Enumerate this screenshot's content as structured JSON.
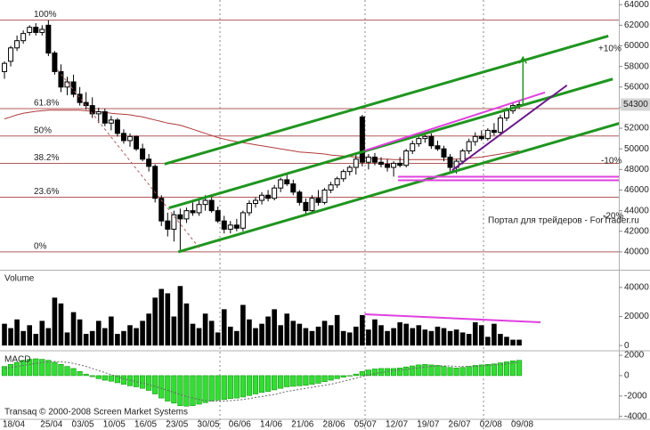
{
  "chart_data": [
    {
      "type": "candlestick",
      "categories": [
        "18/04",
        null,
        null,
        null,
        null,
        null,
        "25/04",
        null,
        null,
        null,
        null,
        "03/05",
        null,
        null,
        null,
        null,
        "10/05",
        null,
        null,
        null,
        null,
        "16/05",
        null,
        null,
        null,
        null,
        "23/05",
        null,
        null,
        null,
        null,
        "30/05",
        null,
        null,
        null,
        null,
        "06/06",
        null,
        null,
        null,
        null,
        "14/06",
        null,
        null,
        null,
        null,
        "21/06",
        null,
        null,
        null,
        null,
        "28/06",
        null,
        null,
        null,
        null,
        "05/07",
        null,
        null,
        null,
        null,
        "12/07",
        null,
        null,
        null,
        null,
        "19/07",
        null,
        null,
        null,
        null,
        "26/07",
        null,
        null,
        null,
        null,
        "02/08",
        null,
        null,
        null,
        null,
        "09/08",
        null
      ],
      "open": [
        57500,
        58500,
        59800,
        60500,
        61300,
        61800,
        61300,
        62000,
        59300,
        57500,
        56000,
        56500,
        55300,
        54500,
        54200,
        53400,
        53600,
        52500,
        52800,
        51500,
        50800,
        51200,
        50000,
        49000,
        48300,
        45200,
        43000,
        42200,
        43600,
        43200,
        44000,
        43800,
        44600,
        45000,
        44000,
        43000,
        42200,
        42600,
        42300,
        43800,
        44700,
        45000,
        45500,
        45200,
        46200,
        47000,
        46600,
        45800,
        44800,
        44000,
        45200,
        44800,
        46000,
        46500,
        47100,
        47800,
        48200,
        53100,
        48700,
        49200,
        48700,
        48500,
        48200,
        48600,
        48400,
        49800,
        50500,
        51000,
        51200,
        50300,
        50000,
        49200,
        48200,
        48800,
        49800,
        50700,
        51200,
        51000,
        51800,
        51600,
        53000,
        53700,
        54200
      ],
      "high": [
        58500,
        60000,
        61000,
        61500,
        62000,
        62200,
        62000,
        62500,
        59500,
        58200,
        57000,
        57200,
        56000,
        55500,
        55000,
        54000,
        53900,
        53200,
        53000,
        51900,
        51500,
        51300,
        50500,
        49500,
        48500,
        45500,
        43800,
        44000,
        44200,
        44300,
        44800,
        45000,
        45500,
        45300,
        44400,
        43500,
        43000,
        43200,
        44000,
        45000,
        45300,
        45800,
        46000,
        46500,
        47200,
        47600,
        47000,
        46000,
        45200,
        45500,
        46000,
        46200,
        46800,
        47300,
        48000,
        48400,
        49500,
        53300,
        49500,
        49600,
        49200,
        49000,
        48800,
        49200,
        50000,
        50800,
        51200,
        51500,
        51500,
        50800,
        50300,
        49500,
        49000,
        50000,
        51000,
        51600,
        51800,
        52000,
        52500,
        53300,
        54000,
        54500,
        54600
      ],
      "low": [
        56800,
        58000,
        59500,
        60200,
        61000,
        61000,
        61000,
        59000,
        57200,
        55500,
        55200,
        55000,
        54200,
        53800,
        53000,
        52500,
        52200,
        51800,
        51200,
        50500,
        50200,
        49800,
        48800,
        47800,
        44800,
        42500,
        41500,
        41000,
        40000,
        42800,
        43500,
        43500,
        44000,
        43800,
        42800,
        41800,
        41800,
        42000,
        42000,
        43500,
        44300,
        44600,
        44900,
        45000,
        45800,
        46400,
        45500,
        44500,
        43700,
        43800,
        44500,
        44600,
        45700,
        46200,
        46800,
        47400,
        47500,
        48300,
        48000,
        48400,
        48200,
        47800,
        47300,
        48200,
        48200,
        49500,
        50200,
        50600,
        50000,
        49800,
        48800,
        47800,
        47600,
        48500,
        49500,
        50300,
        50800,
        50800,
        51300,
        51400,
        52700,
        53400,
        53900
      ],
      "close": [
        58300,
        59800,
        60500,
        61200,
        61800,
        61300,
        61600,
        59300,
        57500,
        56000,
        56500,
        55300,
        54500,
        54200,
        53400,
        53600,
        52500,
        52800,
        51500,
        50800,
        51200,
        50000,
        49000,
        48300,
        45200,
        43000,
        42200,
        43600,
        43200,
        44000,
        43800,
        44600,
        45000,
        44000,
        43000,
        42200,
        42600,
        42300,
        43800,
        44700,
        45000,
        45500,
        45200,
        46200,
        47000,
        46600,
        45800,
        44800,
        44000,
        45200,
        44800,
        46000,
        46500,
        47100,
        47800,
        48200,
        49000,
        48700,
        49200,
        48700,
        48500,
        48200,
        48600,
        48400,
        49800,
        50500,
        51000,
        51200,
        50300,
        50000,
        49200,
        48200,
        48800,
        49800,
        50700,
        51200,
        51000,
        51800,
        51600,
        53000,
        53700,
        54200,
        54300
      ],
      "up_color": "#ffffff",
      "down_color": "#000000",
      "ylim": [
        38350,
        64450
      ],
      "yticks": [
        40000,
        42000,
        44000,
        46000,
        48000,
        50000,
        52000,
        54000,
        56000,
        58000,
        60000,
        62000,
        64000
      ],
      "moving_average": {
        "color": "#b03a3a",
        "values": [
          52900,
          53100,
          53300,
          53450,
          53550,
          53650,
          53700,
          53750,
          53750,
          53750,
          53750,
          53750,
          53750,
          53700,
          53650,
          53600,
          53550,
          53450,
          53400,
          53350,
          53300,
          53200,
          53100,
          52950,
          52800,
          52650,
          52500,
          52400,
          52300,
          52100,
          51900,
          51700,
          51500,
          51300,
          51100,
          50950,
          50800,
          50700,
          50600,
          50500,
          50400,
          50300,
          50200,
          50100,
          50000,
          49900,
          49800,
          49700,
          49650,
          49600,
          49550,
          49500,
          49400,
          49350,
          49300,
          49250,
          49200,
          49150,
          49100,
          49050,
          49000,
          49000,
          48950,
          48950,
          48950,
          48950,
          48950,
          48950,
          48950,
          48950,
          48950,
          49000,
          49000,
          49050,
          49100,
          49150,
          49200,
          49300,
          49400,
          49500,
          49600,
          49700,
          49800
        ]
      },
      "level_color": "#b05a5a",
      "levels": [
        {
          "label": "100%",
          "value": 62500
        },
        {
          "label": "61.8%",
          "value": 53905
        },
        {
          "label": "50%",
          "value": 51250
        },
        {
          "label": "38.2%",
          "value": 48595
        },
        {
          "label": "23.6%",
          "value": 45310
        },
        {
          "label": "0%",
          "value": 40000
        }
      ],
      "trendlines": [
        {
          "color": "#1f951f",
          "style": "bold",
          "x": [
            25.5,
            96.2
          ],
          "y": [
            48520,
            60960
          ]
        },
        {
          "color": "#1f951f",
          "style": "bold",
          "x": [
            26.2,
            96.9
          ],
          "y": [
            44260,
            56780
          ]
        },
        {
          "color": "#1f951f",
          "style": "bold",
          "x": [
            27.7,
            98.2
          ],
          "y": [
            40000,
            52520
          ]
        },
        {
          "color": "#e040e0",
          "style": "normal",
          "x": [
            57.4,
            86.1
          ],
          "y": [
            49830,
            55480
          ]
        },
        {
          "color": "#e040e0",
          "style": "normal",
          "x": [
            62.7,
            98.2
          ],
          "y": [
            47300,
            47300
          ]
        },
        {
          "color": "#e040e0",
          "style": "normal",
          "x": [
            62.7,
            98.2
          ],
          "y": [
            46950,
            46950
          ]
        },
        {
          "color": "#6a1a8a",
          "style": "normal",
          "x": [
            71.3,
            89.6
          ],
          "y": [
            47910,
            56170
          ]
        },
        {
          "color": "#b05a5a",
          "style": "dashed",
          "x": [
            8.5,
            31.2
          ],
          "y": [
            57650,
            40260
          ]
        }
      ],
      "arrow": {
        "color": "#1f951f",
        "x": 82.6,
        "y": [
          54200,
          58900
        ]
      },
      "annotations": [
        {
          "text": "+10%",
          "color": "#1f951f"
        },
        {
          "text": "-10%",
          "color": "#c04040"
        },
        {
          "text": "-20%",
          "color": "#c04040"
        }
      ],
      "watermark": "Портал для трейдеров - ForTrader.ru",
      "last_price": 54300
    },
    {
      "type": "bar",
      "title": "Volume",
      "color": "#000000",
      "values": [
        15000,
        12000,
        18000,
        10000,
        14000,
        8000,
        17000,
        12000,
        33000,
        29000,
        9000,
        23000,
        18000,
        8000,
        10000,
        17000,
        12000,
        20000,
        8000,
        10000,
        14000,
        12000,
        17000,
        22000,
        33000,
        39000,
        36000,
        20000,
        41000,
        29000,
        15000,
        12000,
        22000,
        17000,
        9000,
        25000,
        13000,
        10000,
        28000,
        18000,
        12000,
        15000,
        20000,
        25000,
        14000,
        22000,
        17000,
        15000,
        12000,
        10000,
        13000,
        17000,
        14000,
        21000,
        10000,
        9000,
        13000,
        21000,
        11000,
        18000,
        14000,
        10000,
        12000,
        16000,
        15000,
        12000,
        14000,
        11000,
        10000,
        13000,
        12000,
        10000,
        11000,
        9000,
        8000,
        16000,
        14000,
        6000,
        15000,
        8000,
        6000,
        4000,
        4000
      ],
      "ylim": [
        -3000,
        51000
      ],
      "yticks": [
        0,
        20000,
        40000
      ],
      "trendlines": [
        {
          "color": "#e040e0",
          "style": "normal",
          "x": [
            57.4,
            85.4
          ],
          "y": [
            21540,
            16000
          ]
        }
      ]
    },
    {
      "type": "bar",
      "title": "MACD",
      "color": "#33dd33",
      "edge_color": "#119911",
      "values": [
        900,
        1100,
        1300,
        1500,
        1600,
        1650,
        1600,
        1500,
        1300,
        1100,
        900,
        700,
        400,
        150,
        -100,
        -300,
        -450,
        -550,
        -700,
        -850,
        -1000,
        -1100,
        -1250,
        -1450,
        -1800,
        -2200,
        -2500,
        -2700,
        -2950,
        -3000,
        -2950,
        -2800,
        -2650,
        -2500,
        -2400,
        -2350,
        -2250,
        -2200,
        -2100,
        -1950,
        -1800,
        -1650,
        -1550,
        -1400,
        -1250,
        -1100,
        -1050,
        -1000,
        -950,
        -850,
        -750,
        -600,
        -450,
        -300,
        -150,
        0,
        150,
        400,
        550,
        650,
        700,
        700,
        700,
        750,
        850,
        950,
        1050,
        1100,
        1050,
        1000,
        900,
        800,
        750,
        800,
        900,
        1000,
        1050,
        1100,
        1150,
        1250,
        1350,
        1450,
        1500
      ],
      "signal": {
        "color": "#666666",
        "values": [
          700,
          800,
          900,
          1000,
          1100,
          1200,
          1300,
          1350,
          1400,
          1350,
          1300,
          1200,
          1050,
          900,
          700,
          500,
          300,
          100,
          -100,
          -300,
          -450,
          -600,
          -750,
          -900,
          -1050,
          -1250,
          -1450,
          -1650,
          -1850,
          -2050,
          -2200,
          -2350,
          -2450,
          -2500,
          -2500,
          -2500,
          -2450,
          -2400,
          -2350,
          -2250,
          -2150,
          -2050,
          -1950,
          -1850,
          -1700,
          -1550,
          -1450,
          -1350,
          -1250,
          -1150,
          -1050,
          -950,
          -850,
          -700,
          -550,
          -400,
          -250,
          -100,
          50,
          200,
          300,
          400,
          500,
          550,
          600,
          700,
          750,
          850,
          900,
          950,
          950,
          950,
          900,
          900,
          900,
          900,
          950,
          1000,
          1050,
          1100,
          1150,
          1250,
          1300
        ]
      },
      "ylim": [
        -4200,
        2350
      ],
      "yticks": [
        -4000,
        -2000,
        0,
        2000
      ]
    }
  ],
  "footer": "Transaq © 2000-2008 Screen Market Systems"
}
